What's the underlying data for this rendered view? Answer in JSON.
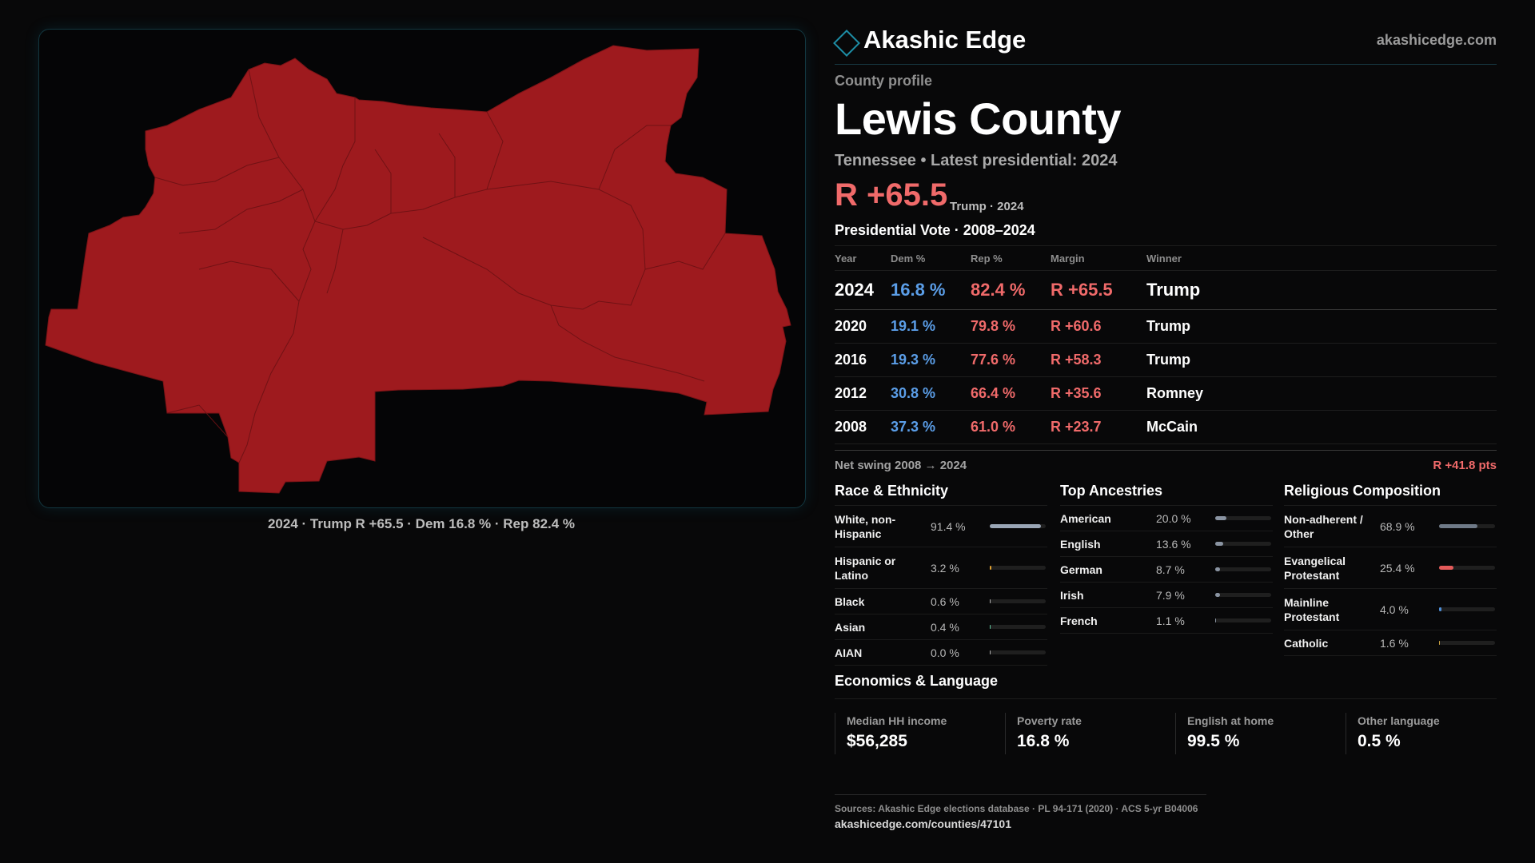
{
  "map": {
    "fill_color": "#9e1a1e",
    "caption": "2024 · Trump R +65.5 · Dem 16.8 % · Rep 82.4 %"
  },
  "brand": {
    "name": "Akashic Edge",
    "url": "akashicedge.com",
    "icon": "diamond-icon"
  },
  "profile": {
    "kicker": "County profile",
    "county": "Lewis County",
    "subtitle": "Tennessee • Latest presidential: 2024",
    "margin": "R +65.5",
    "margin_note": "Trump · 2024"
  },
  "vote": {
    "title": "Presidential Vote · 2008–2024",
    "headers": {
      "year": "Year",
      "dem": "Dem %",
      "rep": "Rep %",
      "margin": "Margin",
      "winner": "Winner"
    },
    "rows": [
      {
        "year": "2024",
        "dem": "16.8 %",
        "rep": "82.4 %",
        "margin": "R +65.5",
        "winner": "Trump"
      },
      {
        "year": "2020",
        "dem": "19.1 %",
        "rep": "79.8 %",
        "margin": "R +60.6",
        "winner": "Trump"
      },
      {
        "year": "2016",
        "dem": "19.3 %",
        "rep": "77.6 %",
        "margin": "R +58.3",
        "winner": "Trump"
      },
      {
        "year": "2012",
        "dem": "30.8 %",
        "rep": "66.4 %",
        "margin": "R +35.6",
        "winner": "Romney"
      },
      {
        "year": "2008",
        "dem": "37.3 %",
        "rep": "61.0 %",
        "margin": "R +23.7",
        "winner": "McCain"
      }
    ],
    "swing_label": "Net swing 2008 → 2024",
    "swing_value": "R +41.8 pts"
  },
  "race": {
    "title": "Race & Ethnicity",
    "rows": [
      {
        "label": "White, non-Hispanic",
        "value": "91.4 %",
        "pct": 91.4,
        "color": "#9aa6b6"
      },
      {
        "label": "Hispanic or Latino",
        "value": "3.2 %",
        "pct": 3.2,
        "color": "#e0a030"
      },
      {
        "label": "Black",
        "value": "0.6 %",
        "pct": 0.6,
        "color": "#b0b0b0"
      },
      {
        "label": "Asian",
        "value": "0.4 %",
        "pct": 0.4,
        "color": "#5ec8a0"
      },
      {
        "label": "AIAN",
        "value": "0.0 %",
        "pct": 0.0,
        "color": "#b0b0b0"
      }
    ]
  },
  "ancestry": {
    "title": "Top Ancestries",
    "rows": [
      {
        "label": "American",
        "value": "20.0 %",
        "pct": 20.0,
        "color": "#8a94a2"
      },
      {
        "label": "English",
        "value": "13.6 %",
        "pct": 13.6,
        "color": "#8a94a2"
      },
      {
        "label": "German",
        "value": "8.7 %",
        "pct": 8.7,
        "color": "#8a94a2"
      },
      {
        "label": "Irish",
        "value": "7.9 %",
        "pct": 7.9,
        "color": "#8a94a2"
      },
      {
        "label": "French",
        "value": "1.1 %",
        "pct": 1.1,
        "color": "#8a94a2"
      }
    ]
  },
  "religion": {
    "title": "Religious Composition",
    "rows": [
      {
        "label": "Non-adherent / Other",
        "value": "68.9 %",
        "pct": 68.9,
        "color": "#6f7a88"
      },
      {
        "label": "Evangelical Protestant",
        "value": "25.4 %",
        "pct": 25.4,
        "color": "#e45a5a"
      },
      {
        "label": "Mainline Protestant",
        "value": "4.0 %",
        "pct": 4.0,
        "color": "#4f8fd8"
      },
      {
        "label": "Catholic",
        "value": "1.6 %",
        "pct": 1.6,
        "color": "#c8a040"
      }
    ]
  },
  "economics": {
    "title": "Economics & Language",
    "cards": [
      {
        "label": "Median HH income",
        "value": "$56,285"
      },
      {
        "label": "Poverty rate",
        "value": "16.8 %"
      },
      {
        "label": "English at home",
        "value": "99.5 %"
      },
      {
        "label": "Other language",
        "value": "0.5 %"
      }
    ]
  },
  "sources": {
    "text": "Sources: Akashic Edge elections database · PL 94-171 (2020) · ACS 5-yr B04006",
    "url": "akashicedge.com/counties/47101"
  }
}
